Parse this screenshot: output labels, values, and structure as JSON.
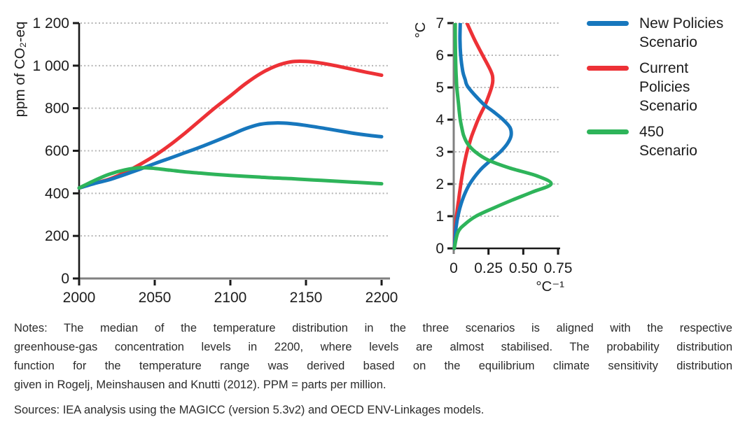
{
  "chart_data": [
    {
      "type": "line",
      "title": "",
      "ylabel": "ppm of CO₂-eq",
      "xlabel": "",
      "xlim": [
        2000,
        2200
      ],
      "ylim": [
        0,
        1200
      ],
      "grid": "dotted horizontal",
      "x_tick_values": [
        2000,
        2050,
        2100,
        2150,
        2200
      ],
      "x_tick_labels": [
        "2000",
        "2050",
        "2100",
        "2150",
        "2200"
      ],
      "y_tick_values": [
        1200,
        1000,
        800,
        600,
        400,
        200,
        0
      ],
      "y_tick_labels": [
        "1 200",
        "1 000",
        "800",
        "600",
        "400",
        "200",
        "0"
      ],
      "x": [
        2000,
        2010,
        2020,
        2030,
        2040,
        2050,
        2060,
        2070,
        2080,
        2090,
        2100,
        2110,
        2120,
        2130,
        2140,
        2150,
        2160,
        2170,
        2180,
        2190,
        2200
      ],
      "series": [
        {
          "name": "Current Policies Scenario",
          "color": "#ed3136",
          "values": [
            425,
            447,
            467,
            497,
            535,
            577,
            627,
            683,
            743,
            803,
            858,
            915,
            963,
            998,
            1018,
            1020,
            1012,
            999,
            984,
            969,
            955
          ]
        },
        {
          "name": "New Policies Scenario",
          "color": "#1777bd",
          "values": [
            425,
            446,
            464,
            488,
            513,
            540,
            565,
            591,
            617,
            645,
            674,
            704,
            725,
            731,
            728,
            719,
            708,
            696,
            684,
            674,
            666
          ]
        },
        {
          "name": "450 Scenario",
          "color": "#2eb45a",
          "values": [
            425,
            460,
            490,
            510,
            520,
            517,
            509,
            501,
            495,
            489,
            484,
            480,
            476,
            472,
            469,
            465,
            461,
            457,
            453,
            449,
            445
          ]
        }
      ]
    },
    {
      "type": "line",
      "title": "",
      "ylabel": "°C",
      "xlabel": "°C⁻¹",
      "orientation": "probability density on x-axis, temperature on y-axis",
      "xlim": [
        0,
        0.75
      ],
      "ylim": [
        0,
        7
      ],
      "grid": "dotted horizontal",
      "x_tick_values": [
        0,
        0.25,
        0.5,
        0.75
      ],
      "x_tick_labels": [
        "0",
        "0.25",
        "0.50",
        "0.75"
      ],
      "y_tick_values": [
        7,
        6,
        5,
        4,
        3,
        2,
        1,
        0
      ],
      "y_tick_labels": [
        "7",
        "6",
        "5",
        "4",
        "3",
        "2",
        "1",
        "0"
      ],
      "temperature_c": [
        0,
        0.5,
        0.75,
        1,
        1.25,
        1.5,
        1.75,
        2,
        2.25,
        2.5,
        2.75,
        3,
        3.25,
        3.5,
        3.75,
        4,
        4.25,
        4.5,
        5,
        5.25,
        5.5,
        6,
        6.5,
        7
      ],
      "series": [
        {
          "name": "Current Policies Scenario",
          "color": "#ed3136",
          "density": [
            0.004,
            0.009,
            0.014,
            0.02,
            0.027,
            0.035,
            0.043,
            0.051,
            0.06,
            0.07,
            0.082,
            0.095,
            0.112,
            0.13,
            0.152,
            0.175,
            0.202,
            0.23,
            0.272,
            0.281,
            0.268,
            0.208,
            0.148,
            0.095
          ]
        },
        {
          "name": "New Policies Scenario",
          "color": "#1777bd",
          "density": [
            0.004,
            0.013,
            0.02,
            0.03,
            0.044,
            0.062,
            0.085,
            0.115,
            0.155,
            0.205,
            0.27,
            0.335,
            0.385,
            0.412,
            0.405,
            0.355,
            0.285,
            0.21,
            0.105,
            0.082,
            0.065,
            0.05,
            0.045,
            0.047
          ]
        },
        {
          "name": "450 Scenario",
          "color": "#2eb45a",
          "density": [
            0.004,
            0.03,
            0.08,
            0.16,
            0.285,
            0.42,
            0.565,
            0.7,
            0.6,
            0.4,
            0.245,
            0.155,
            0.1,
            0.072,
            0.058,
            0.047,
            0.04,
            0.034,
            0.022,
            0.019,
            0.016,
            0.013,
            0.011,
            0.011
          ]
        }
      ]
    }
  ],
  "legend": {
    "position": "right",
    "items": [
      {
        "label": "New Policies Scenario",
        "color": "#1777bd"
      },
      {
        "label": "Current Policies Scenario",
        "color": "#ed3136"
      },
      {
        "label": "450 Scenario",
        "color": "#2eb45a"
      }
    ]
  },
  "notes": {
    "lines": [
      "Notes: The median of the temperature distribution in the three scenarios is aligned with the respective",
      "greenhouse-gas concentration levels in 2200, where levels are almost stabilised. The probability distribution",
      "function for the temperature range was derived based on the equilibrium climate sensitivity distribution",
      "given in Rogelj, Meinshausen and Knutti (2012). PPM = parts per million."
    ]
  },
  "sources": {
    "text": "Sources: IEA analysis using the MAGICC (version 5.3v2) and OECD ENV-Linkages models."
  }
}
